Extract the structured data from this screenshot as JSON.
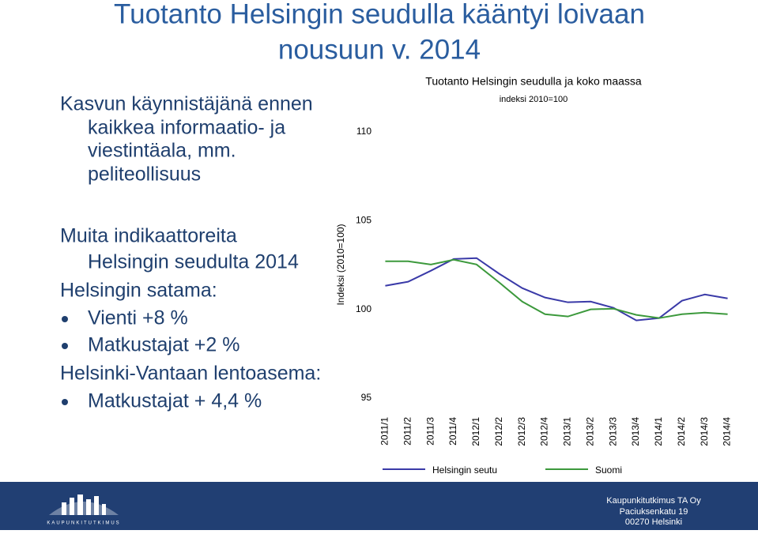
{
  "slide": {
    "title": [
      "Tuotanto Helsingin seudulla  kääntyi loivaan",
      "nousuun v. 2014"
    ],
    "intro": [
      "Kasvun käynnistäjänä ennen",
      "kaikkea informaatio- ja",
      "viestintäala, mm.",
      "peliteollisuus"
    ],
    "indicators": {
      "heading": [
        "Muita indikaattoreita",
        "Helsingin seudulta 2014"
      ],
      "groups": [
        {
          "label": "Helsingin satama:",
          "items": [
            "Vienti +8 %",
            "Matkustajat +2 %"
          ]
        },
        {
          "label": "Helsinki-Vantaan lentoasema:",
          "items": [
            "Matkustajat + 4,4 %"
          ]
        }
      ]
    },
    "footer": {
      "logo": "KAUPUNKITUTKIMUS",
      "address": [
        "Kaupunkitutkimus TA Oy",
        "Paciuksenkatu 19",
        "00270 Helsinki"
      ]
    }
  },
  "chart_data": {
    "type": "line",
    "title": "Tuotanto Helsingin seudulla ja koko maassa",
    "subtitle": "indeksi 2010=100",
    "y_label": "Indeksi (2010=100)",
    "categories": [
      "2011/1",
      "2011/2",
      "2011/3",
      "2011/4",
      "2012/1",
      "2012/2",
      "2012/3",
      "2012/4",
      "2013/1",
      "2013/2",
      "2013/3",
      "2013/4",
      "2014/1",
      "2014/2",
      "2014/3",
      "2014/4"
    ],
    "series": [
      {
        "name": "Helsingin seutu",
        "color": "#3a3aa8",
        "values": [
          101.33,
          101.56,
          102.18,
          102.84,
          102.89,
          102.0,
          101.2,
          100.67,
          100.4,
          100.44,
          100.09,
          99.38,
          99.51,
          100.49,
          100.84,
          100.62
        ]
      },
      {
        "name": "Suomi",
        "color": "#3c993c",
        "values": [
          102.71,
          102.71,
          102.53,
          102.8,
          102.53,
          101.51,
          100.44,
          99.73,
          99.6,
          100.0,
          100.04,
          99.69,
          99.51,
          99.73,
          99.82,
          99.73
        ]
      }
    ],
    "ylim": [
      95,
      110
    ],
    "yticks": [
      95,
      100,
      105,
      110
    ],
    "grid": false,
    "legend": "bottom"
  }
}
